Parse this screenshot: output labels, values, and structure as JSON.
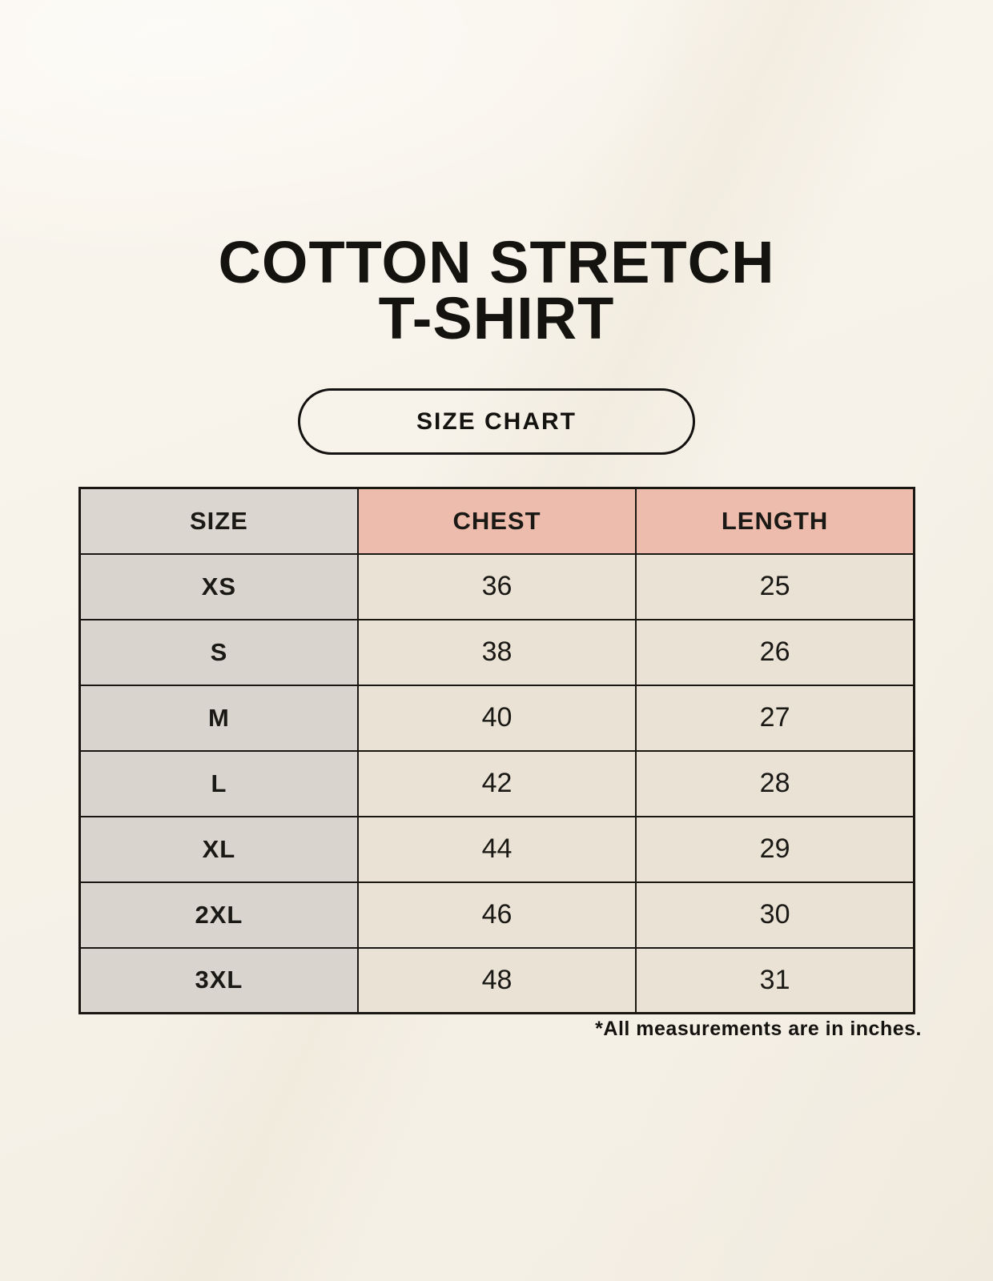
{
  "page": {
    "title_line1": "COTTON STRETCH",
    "title_line2": "T-SHIRT",
    "badge_label": "SIZE CHART",
    "footnote": "*All measurements are in inches."
  },
  "table": {
    "columns": [
      "SIZE",
      "CHEST",
      "LENGTH"
    ],
    "rows": [
      {
        "size": "XS",
        "chest": "36",
        "length": "25"
      },
      {
        "size": "S",
        "chest": "38",
        "length": "26"
      },
      {
        "size": "M",
        "chest": "40",
        "length": "27"
      },
      {
        "size": "L",
        "chest": "42",
        "length": "28"
      },
      {
        "size": "XL",
        "chest": "44",
        "length": "29"
      },
      {
        "size": "2XL",
        "chest": "46",
        "length": "30"
      },
      {
        "size": "3XL",
        "chest": "48",
        "length": "31"
      }
    ]
  },
  "colors": {
    "background": "#F6F2E9",
    "size_column_bg": "#DAD4CE",
    "header_accent_bg": "#EEBCAC",
    "data_cell_bg": "#E9E2D5",
    "table_border": "#1A1713",
    "text": "#15130F"
  },
  "chart_data": {
    "type": "table",
    "title": "COTTON STRETCH T-SHIRT — SIZE CHART",
    "columns": [
      "SIZE",
      "CHEST",
      "LENGTH"
    ],
    "rows": [
      [
        "XS",
        36,
        25
      ],
      [
        "S",
        38,
        26
      ],
      [
        "M",
        40,
        27
      ],
      [
        "L",
        42,
        28
      ],
      [
        "XL",
        44,
        29
      ],
      [
        "2XL",
        46,
        30
      ],
      [
        "3XL",
        48,
        31
      ]
    ],
    "units": "inches"
  }
}
